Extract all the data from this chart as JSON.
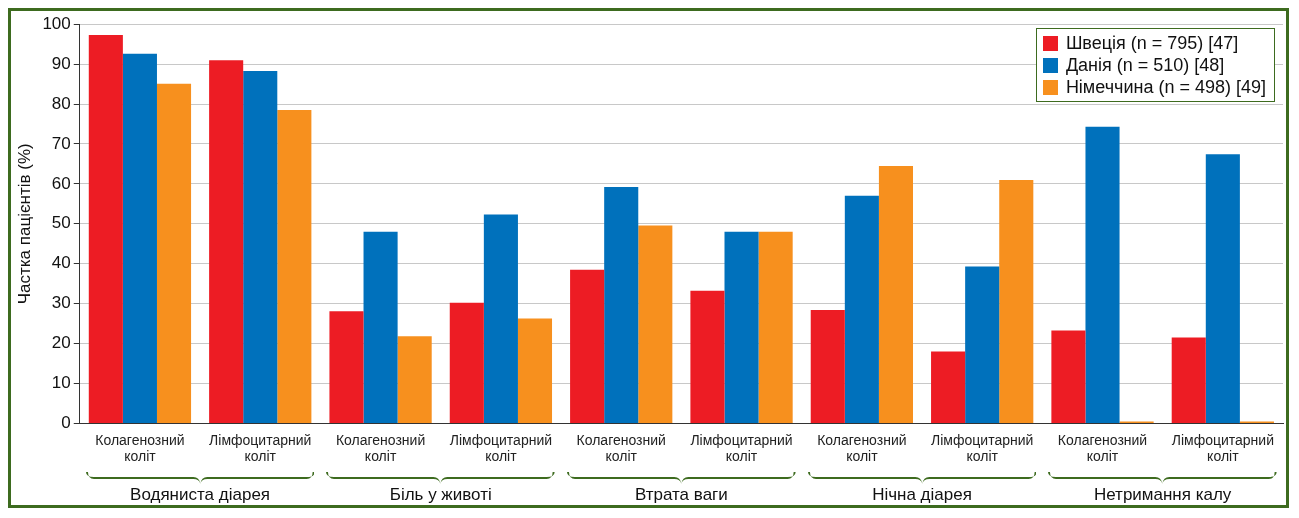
{
  "chart_data": {
    "type": "bar",
    "ylabel": "Частка пацієнтів (%)",
    "categories": [
      "Колагенозний коліт",
      "Лімфоцитарний коліт",
      "Колагенозний коліт",
      "Лімфоцитарний коліт",
      "Колагенозний коліт",
      "Лімфоцитарний коліт",
      "Колагенозний коліт",
      "Лімфоцитарний коліт",
      "Колагенозний коліт",
      "Лімфоцитарний коліт"
    ],
    "series": [
      {
        "name": "Швеція (n = 795) [47]",
        "color": "#ed1c24",
        "values": [
          97.3,
          91,
          28.1,
          30.2,
          38.5,
          33.2,
          28.4,
          18,
          23.3,
          21.5
        ]
      },
      {
        "name": "Данія (n = 510) [48]",
        "color": "#0071bc",
        "values": [
          92.6,
          88.3,
          48,
          52.3,
          59.2,
          48,
          57,
          39.3,
          74.3,
          67.4
        ]
      },
      {
        "name": "Німеччина (n = 498) [49]",
        "color": "#f7901e",
        "values": [
          85.1,
          78.5,
          21.8,
          26.3,
          49.6,
          48,
          64.5,
          61,
          0.5,
          0.5
        ]
      }
    ],
    "annotations": [
      "Водяниста діарея",
      "Біль у животі",
      "Втрата ваги",
      "Нічна діарея",
      "Нетримання калу"
    ],
    "ylim": [
      0,
      100
    ],
    "yticks": [
      0,
      10,
      20,
      30,
      40,
      50,
      60,
      70,
      80,
      90,
      100
    ],
    "grid": "y",
    "legend": "top right"
  }
}
